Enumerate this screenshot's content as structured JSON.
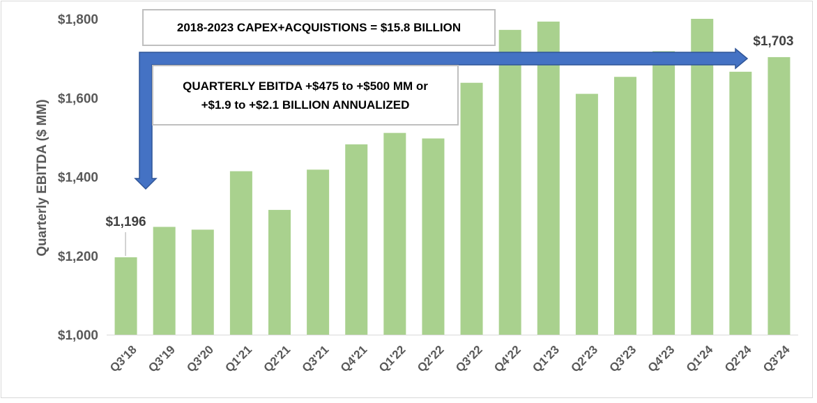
{
  "chart_data": {
    "type": "bar",
    "ylabel": "Quarterly  EBITDA ($ MM)",
    "xlabel": "",
    "ylim": [
      1000,
      1800
    ],
    "yticks": [
      1000,
      1200,
      1400,
      1600,
      1800
    ],
    "ytick_labels": [
      "$1,000",
      "$1,200",
      "$1,400",
      "$1,600",
      "$1,800"
    ],
    "categories": [
      "Q3'18",
      "Q3'19",
      "Q3'20",
      "Q1'21",
      "Q2'21",
      "Q3'21",
      "Q4'21",
      "Q1'22",
      "Q2'22",
      "Q3'22",
      "Q4'22",
      "Q1'23",
      "Q2'23",
      "Q3'23",
      "Q4'23",
      "Q1'24",
      "Q2'24",
      "Q3'24"
    ],
    "values": [
      1196,
      1273,
      1266,
      1414,
      1316,
      1418,
      1482,
      1511,
      1497,
      1638,
      1772,
      1793,
      1610,
      1653,
      1718,
      1800,
      1666,
      1703
    ],
    "bar_color": "#a9d18e",
    "data_labels": [
      {
        "category": "Q3'18",
        "text": "$1,196"
      },
      {
        "category": "Q3'24",
        "text": "$1,703"
      }
    ],
    "annotations": {
      "capex_box": "2018-2023 CAPEX+ACQUISTIONS = $15.8 BILLION",
      "ebitda_line1": "QUARTERLY EBITDA +$475 to +$500 MM or",
      "ebitda_line2": "+$1.9 to +$2.1 BILLION ANNUALIZED"
    },
    "arrow_color": "#4472c4",
    "arrow_stroke": "#2f5597",
    "grid": false
  }
}
